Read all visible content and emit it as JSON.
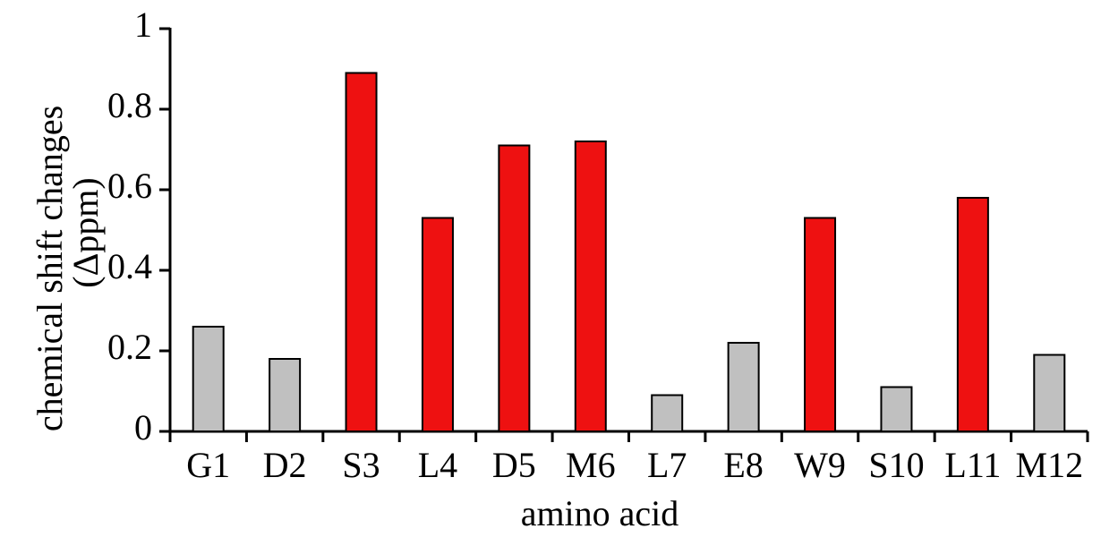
{
  "chart_data": {
    "type": "bar",
    "xlabel": "amino acid",
    "ylabel": [
      "chemical shift changes",
      "(Δppm)"
    ],
    "categories": [
      "G1",
      "D2",
      "S3",
      "L4",
      "D5",
      "M6",
      "L7",
      "E8",
      "W9",
      "S10",
      "L11",
      "M12"
    ],
    "values": [
      0.26,
      0.18,
      0.89,
      0.53,
      0.71,
      0.72,
      0.09,
      0.22,
      0.53,
      0.11,
      0.58,
      0.19
    ],
    "colors": [
      "#c0c0c0",
      "#c0c0c0",
      "#ee1111",
      "#ee1111",
      "#ee1111",
      "#ee1111",
      "#c0c0c0",
      "#c0c0c0",
      "#ee1111",
      "#c0c0c0",
      "#ee1111",
      "#c0c0c0"
    ],
    "ylim": [
      0,
      1
    ],
    "yticks": [
      0,
      0.2,
      0.4,
      0.6,
      0.8,
      1
    ],
    "grid": false
  }
}
